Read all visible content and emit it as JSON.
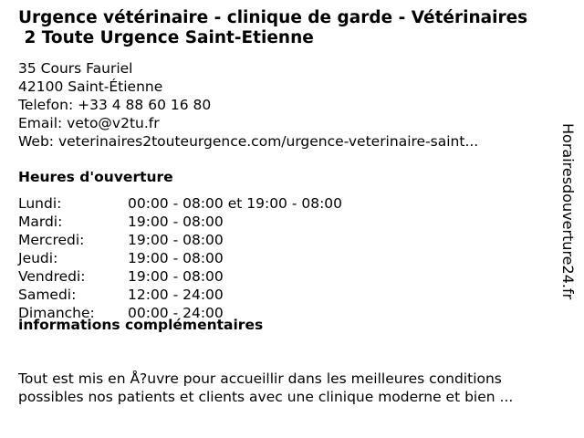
{
  "title_line1": "Urgence vétérinaire - clinique de garde - Vétérinaires",
  "title_line2": " 2 Toute Urgence Saint-Etienne",
  "address": [
    "35 Cours Fauriel",
    "42100 Saint-Étienne",
    "Telefon: +33 4 88 60 16 80",
    "Email: veto@v2tu.fr",
    "Web: veterinaires2touteurgence.com/urgence-veterinaire-saint..."
  ],
  "hours_heading": "Heures d'ouverture",
  "hours": [
    {
      "day": "Lundi:",
      "time": "00:00 - 08:00 et 19:00 - 08:00"
    },
    {
      "day": "Mardi:",
      "time": "19:00 - 08:00"
    },
    {
      "day": "Mercredi:",
      "time": "19:00 - 08:00"
    },
    {
      "day": "Jeudi:",
      "time": "19:00 - 08:00"
    },
    {
      "day": "Vendredi:",
      "time": "19:00 - 08:00"
    },
    {
      "day": "Samedi:",
      "time": "12:00 - 24:00"
    },
    {
      "day": "Dimanche:",
      "time": "00:00 - 24:00"
    }
  ],
  "info_heading": "informations complémentaires",
  "info_lines": [
    "Tout est mis en Å?uvre pour accueillir dans les meilleures conditions",
    "possibles nos patients et clients avec une clinique moderne et bien ..."
  ],
  "side_label": "Horairesdouverture24.fr"
}
